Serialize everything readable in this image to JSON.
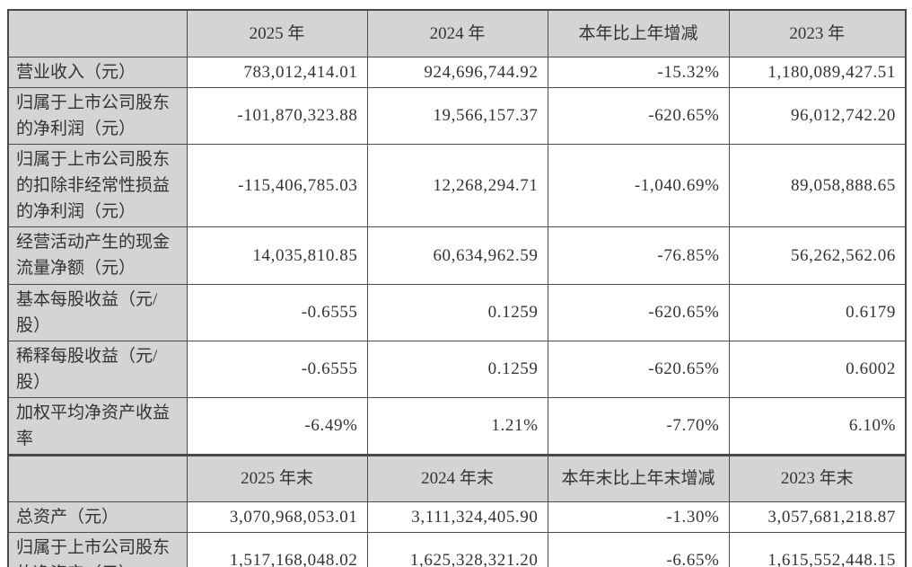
{
  "colors": {
    "header_bg": "#d4d4d4",
    "label_bg": "#d4d4d4",
    "border": "#4a4a4a",
    "text": "#333333",
    "page_bg": "#ffffff"
  },
  "chart_data": {
    "type": "table",
    "sections": [
      {
        "header": [
          "",
          "2025 年",
          "2024 年",
          "本年比上年增减",
          "2023 年"
        ],
        "rows": [
          {
            "label": "营业收入（元）",
            "values": [
              "783,012,414.01",
              "924,696,744.92",
              "-15.32%",
              "1,180,089,427.51"
            ]
          },
          {
            "label": "归属于上市公司股东的净利润（元）",
            "values": [
              "-101,870,323.88",
              "19,566,157.37",
              "-620.65%",
              "96,012,742.20"
            ]
          },
          {
            "label": "归属于上市公司股东的扣除非经常性损益的净利润（元）",
            "values": [
              "-115,406,785.03",
              "12,268,294.71",
              "-1,040.69%",
              "89,058,888.65"
            ]
          },
          {
            "label": "经营活动产生的现金流量净额（元）",
            "values": [
              "14,035,810.85",
              "60,634,962.59",
              "-76.85%",
              "56,262,562.06"
            ]
          },
          {
            "label": "基本每股收益（元/股）",
            "values": [
              "-0.6555",
              "0.1259",
              "-620.65%",
              "0.6179"
            ]
          },
          {
            "label": "稀释每股收益（元/股）",
            "values": [
              "-0.6555",
              "0.1259",
              "-620.65%",
              "0.6002"
            ]
          },
          {
            "label": "加权平均净资产收益率",
            "values": [
              "-6.49%",
              "1.21%",
              "-7.70%",
              "6.10%"
            ]
          }
        ]
      },
      {
        "header": [
          "",
          "2025 年末",
          "2024 年末",
          "本年末比上年末增减",
          "2023 年末"
        ],
        "rows": [
          {
            "label": "总资产（元）",
            "values": [
              "3,070,968,053.01",
              "3,111,324,405.90",
              "-1.30%",
              "3,057,681,218.87"
            ]
          },
          {
            "label": "归属于上市公司股东的净资产（元）",
            "values": [
              "1,517,168,048.02",
              "1,625,328,321.20",
              "-6.65%",
              "1,615,552,448.15"
            ]
          }
        ]
      }
    ]
  }
}
